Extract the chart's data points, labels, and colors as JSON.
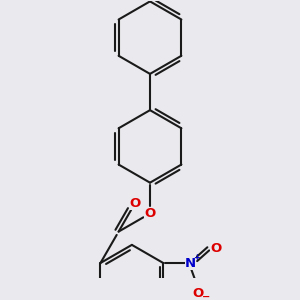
{
  "bg_color": "#eaeaee",
  "bond_color": "#1a1a1a",
  "bond_lw": 1.5,
  "dbo": 0.038,
  "atom_colors": {
    "O": "#dd0000",
    "N": "#0000cc",
    "O_neg": "#dd0000"
  },
  "font_size": 9.5,
  "figsize": [
    3.0,
    3.0
  ],
  "dpi": 100,
  "ring_r": 0.38,
  "xlim": [
    0.1,
    1.9
  ],
  "ylim": [
    0.05,
    2.95
  ]
}
